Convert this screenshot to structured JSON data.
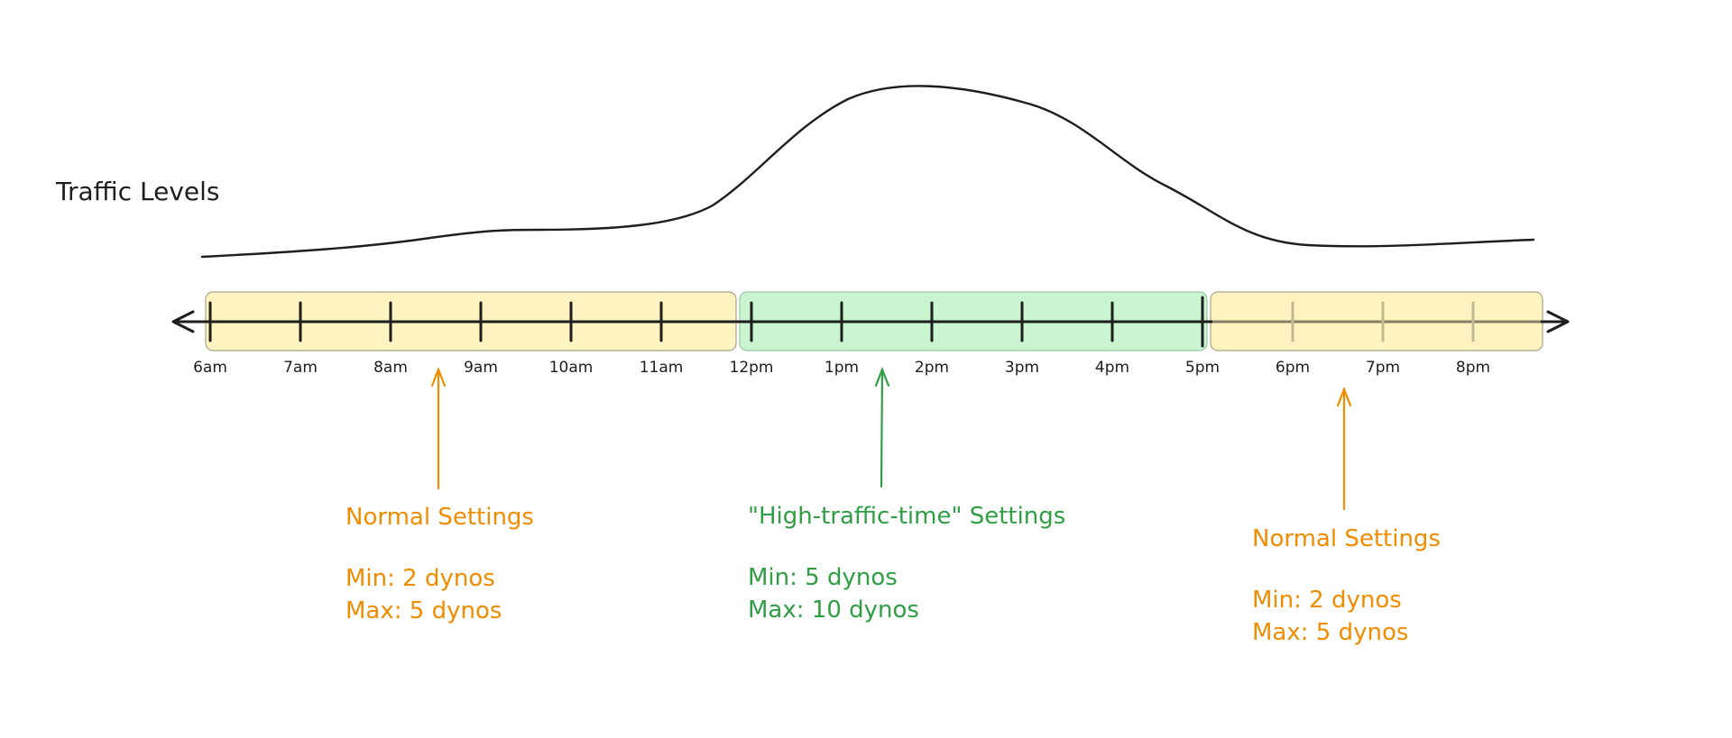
{
  "title": "Traffic Levels",
  "colors": {
    "normal_fill": "#fff3bf",
    "high_fill": "#c8f5d0",
    "normal_text": "#f08c00",
    "high_text": "#2f9e44",
    "ink": "#1e1e1e"
  },
  "timeline": {
    "labels": [
      "6am",
      "7am",
      "8am",
      "9am",
      "10am",
      "11am",
      "12pm",
      "1pm",
      "2pm",
      "3pm",
      "4pm",
      "5pm",
      "6pm",
      "7pm",
      "8pm"
    ]
  },
  "periods": [
    {
      "name": "Normal Settings",
      "min": "Min: 2 dynos",
      "max": "Max: 5 dynos",
      "tone": "normal"
    },
    {
      "name": "\"High-traffic-time\" Settings",
      "min": "Min: 5 dynos",
      "max": "Max: 10 dynos",
      "tone": "high"
    },
    {
      "name": "Normal Settings",
      "min": "Min: 2 dynos",
      "max": "Max: 5 dynos",
      "tone": "normal"
    }
  ]
}
